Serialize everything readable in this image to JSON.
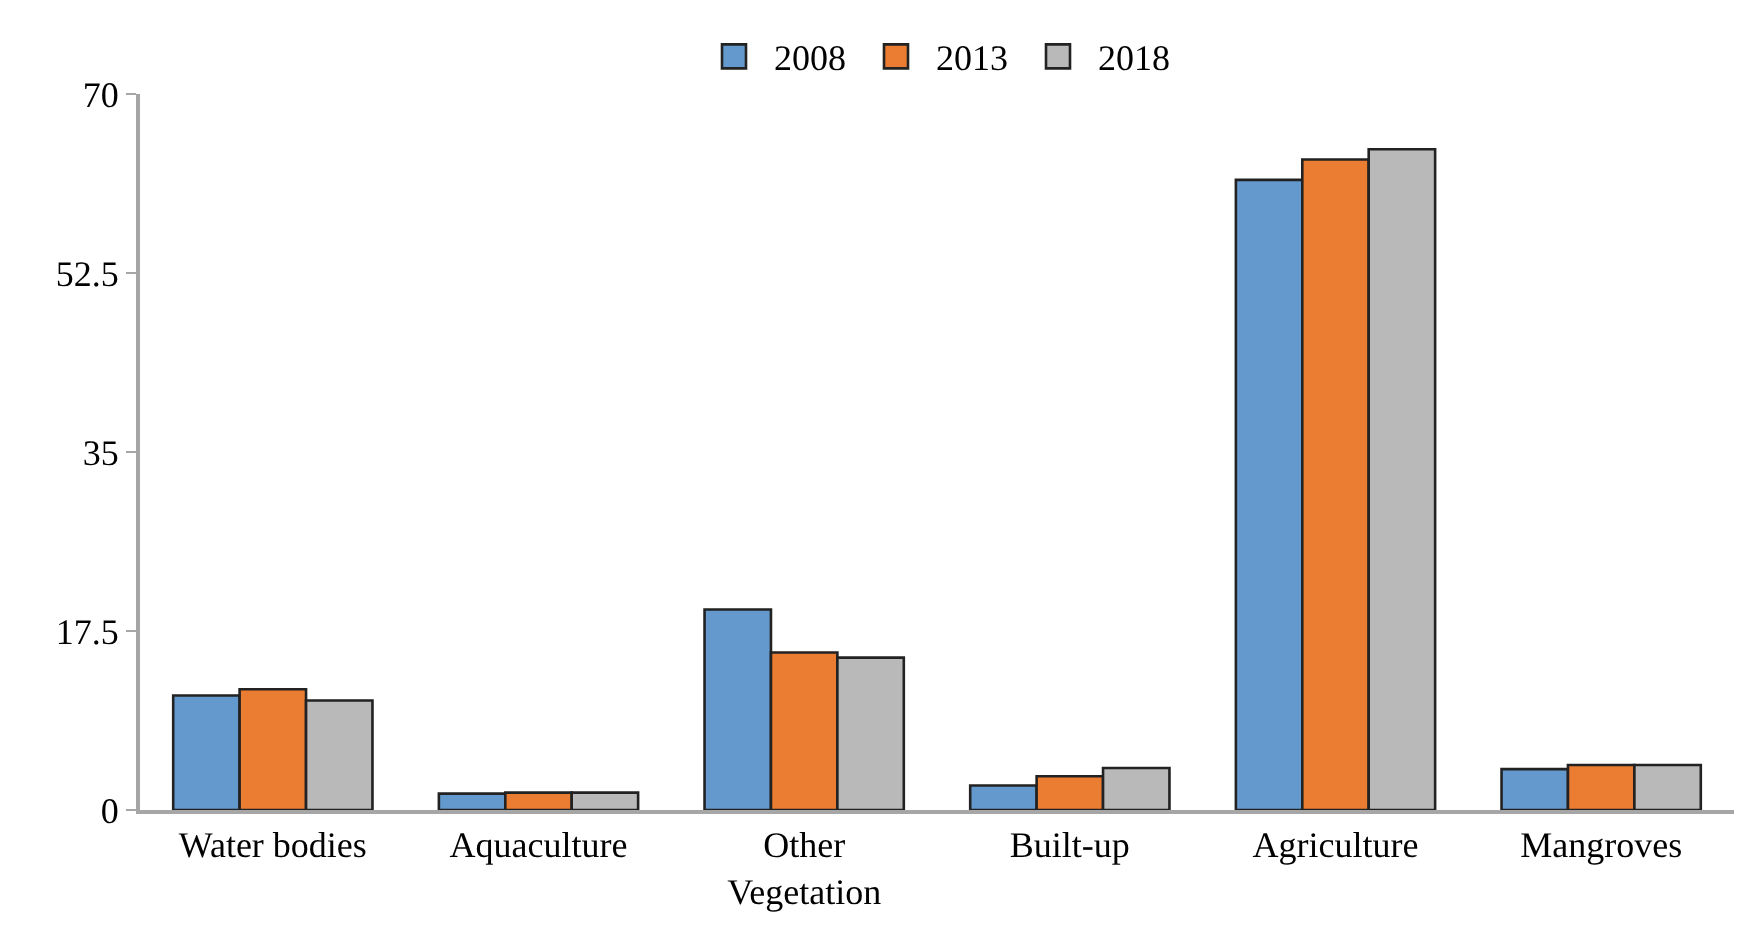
{
  "chart_data": {
    "type": "bar",
    "categories": [
      "Water bodies",
      "Aquaculture",
      "Other\nVegetation",
      "Built-up",
      "Agriculture",
      "Mangroves"
    ],
    "series": [
      {
        "name": "2008",
        "color": "#6399cc",
        "values": [
          11.2,
          1.6,
          19.6,
          2.4,
          61.6,
          4.0
        ]
      },
      {
        "name": "2013",
        "color": "#ea7d31",
        "values": [
          11.8,
          1.7,
          15.4,
          3.3,
          63.6,
          4.4
        ]
      },
      {
        "name": "2018",
        "color": "#b9b9b9",
        "values": [
          10.7,
          1.7,
          14.9,
          4.1,
          64.6,
          4.4
        ]
      }
    ],
    "ylim": [
      0,
      70
    ],
    "yticks": [
      0,
      17.5,
      35,
      52.5,
      70
    ],
    "grid": false,
    "legend": "top"
  }
}
